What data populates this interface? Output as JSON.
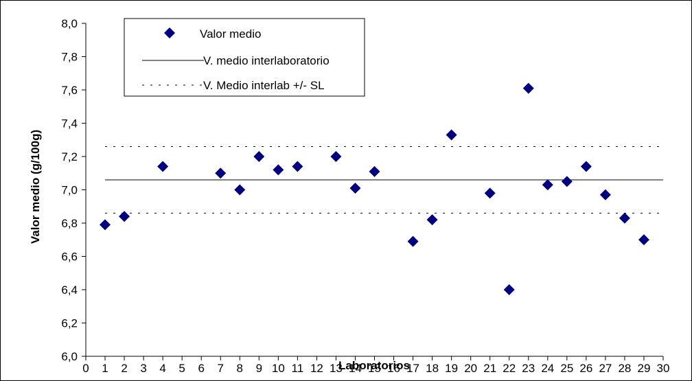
{
  "chart_data": {
    "type": "scatter",
    "xlabel": "Laboratorios",
    "ylabel": "Valor medio (g/100g)",
    "xlim": [
      0,
      30
    ],
    "ylim": [
      6.0,
      8.0
    ],
    "x_ticks": [
      "0",
      "1",
      "2",
      "3",
      "4",
      "5",
      "6",
      "7",
      "8",
      "9",
      "10",
      "11",
      "12",
      "13",
      "14",
      "15",
      "16",
      "17",
      "18",
      "19",
      "20",
      "21",
      "22",
      "23",
      "24",
      "25",
      "26",
      "27",
      "28",
      "29",
      "30"
    ],
    "y_ticks": [
      "6,0",
      "6,2",
      "6,4",
      "6,6",
      "6,8",
      "7,0",
      "7,2",
      "7,4",
      "7,6",
      "7,8",
      "8,0"
    ],
    "y_tick_values": [
      6.0,
      6.2,
      6.4,
      6.6,
      6.8,
      7.0,
      7.2,
      7.4,
      7.6,
      7.8,
      8.0
    ],
    "series": [
      {
        "name": "Valor medio",
        "marker": "diamond",
        "color": "#00007f",
        "points": [
          {
            "x": 1,
            "y": 6.79
          },
          {
            "x": 2,
            "y": 6.84
          },
          {
            "x": 4,
            "y": 7.14
          },
          {
            "x": 7,
            "y": 7.1
          },
          {
            "x": 8,
            "y": 7.0
          },
          {
            "x": 9,
            "y": 7.2
          },
          {
            "x": 10,
            "y": 7.12
          },
          {
            "x": 11,
            "y": 7.14
          },
          {
            "x": 13,
            "y": 7.2
          },
          {
            "x": 14,
            "y": 7.01
          },
          {
            "x": 15,
            "y": 7.11
          },
          {
            "x": 17,
            "y": 6.69
          },
          {
            "x": 18,
            "y": 6.82
          },
          {
            "x": 19,
            "y": 7.33
          },
          {
            "x": 21,
            "y": 6.98
          },
          {
            "x": 22,
            "y": 6.4
          },
          {
            "x": 23,
            "y": 7.61
          },
          {
            "x": 24,
            "y": 7.03
          },
          {
            "x": 25,
            "y": 7.05
          },
          {
            "x": 26,
            "y": 7.14
          },
          {
            "x": 27,
            "y": 6.97
          },
          {
            "x": 28,
            "y": 6.83
          },
          {
            "x": 29,
            "y": 6.7
          }
        ]
      },
      {
        "name": "V. medio interlaboratorio",
        "style": "solid",
        "value": 7.06
      },
      {
        "name": "V. Medio interlab +/- SL",
        "style": "dotted",
        "values": [
          6.86,
          7.26
        ]
      }
    ],
    "legend_position": "top-left",
    "grid": false
  }
}
